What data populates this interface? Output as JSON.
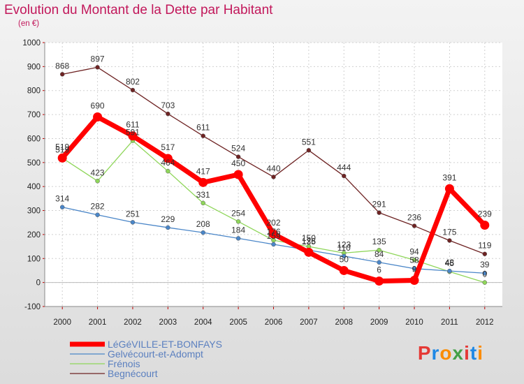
{
  "title": "Evolution du Montant de la Dette par Habitant",
  "subtitle": "(en €)",
  "logo": {
    "text": "Proxiti",
    "colors": [
      "#e53935",
      "#1e88e5",
      "#fb8c00",
      "#43a047",
      "#e53935",
      "#1e88e5",
      "#fb8c00"
    ]
  },
  "chart_data": {
    "type": "line",
    "title": "Evolution du Montant de la Dette par Habitant",
    "ylabel": "(en €)",
    "xlabel": "",
    "ylim": [
      -100,
      1000
    ],
    "yticks": [
      -100,
      0,
      100,
      200,
      300,
      400,
      500,
      600,
      700,
      800,
      900,
      1000
    ],
    "grid": true,
    "legend_position": "bottom-left",
    "categories": [
      "2000",
      "2001",
      "2002",
      "2003",
      "2004",
      "2005",
      "2006",
      "2007",
      "2008",
      "2009",
      "2010",
      "2011",
      "2012"
    ],
    "series": [
      {
        "name": "LéGéVILLE-ET-BONFAYS",
        "color": "#ff0000",
        "values": [
          519,
          690,
          611,
          517,
          417,
          450,
          202,
          126,
          50,
          6,
          9,
          391,
          239
        ]
      },
      {
        "name": "Gelvécourt-et-Adompt",
        "color": "#4a86c8",
        "values": [
          314,
          282,
          251,
          229,
          208,
          184,
          159,
          135,
          110,
          84,
          58,
          48,
          39
        ]
      },
      {
        "name": "Frénois",
        "color": "#8fd65a",
        "values": [
          519,
          423,
          591,
          464,
          331,
          254,
          176,
          150,
          123,
          135,
          94,
          45,
          0
        ]
      },
      {
        "name": "Begnécourt",
        "color": "#6e2323",
        "values": [
          868,
          897,
          802,
          703,
          611,
          524,
          440,
          551,
          444,
          291,
          236,
          175,
          119
        ]
      }
    ]
  }
}
